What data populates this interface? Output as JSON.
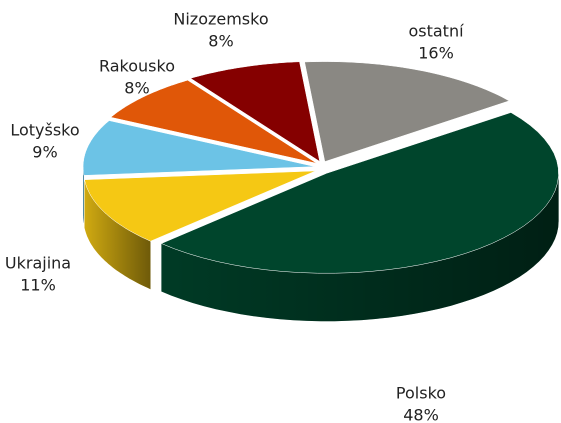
{
  "chart_data": {
    "type": "pie",
    "categories": [
      "ostatní",
      "Polsko",
      "Ukrajina",
      "Lotyšsko",
      "Rakousko",
      "Nizozemsko"
    ],
    "values": [
      16,
      48,
      11,
      9,
      8,
      8
    ],
    "value_labels": [
      "16%",
      "48%",
      "11%",
      "9%",
      "8%",
      "8%"
    ],
    "colors": [
      "#8a8883",
      "#00452c",
      "#f5c814",
      "#6cc3e6",
      "#e05708",
      "#850000"
    ]
  }
}
